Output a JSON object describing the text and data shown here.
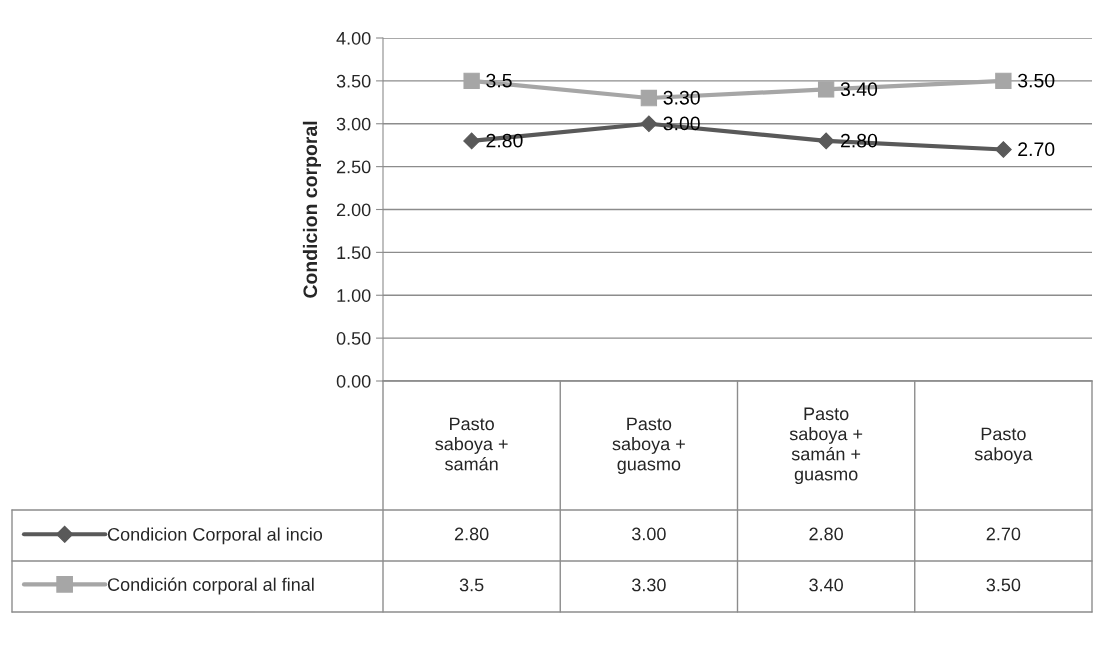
{
  "chart_data": {
    "type": "line",
    "ylabel": "Condicion corporal",
    "categories": [
      "Pasto\nsaboya +\nsamán",
      "Pasto\nsaboya +\nguasmo",
      "Pasto\nsaboya +\nsamán +\nguasmo",
      "Pasto\nsaboya"
    ],
    "series": [
      {
        "name": "Condicion Corporal al incio",
        "color": "#595959",
        "marker": "diamond",
        "values": [
          2.8,
          3.0,
          2.8,
          2.7
        ],
        "value_labels": [
          "2.80",
          "3.00",
          "2.80",
          "2.70"
        ]
      },
      {
        "name": "Condición corporal al final",
        "color": "#a6a6a6",
        "marker": "square",
        "values": [
          3.5,
          3.3,
          3.4,
          3.5
        ],
        "value_labels": [
          "3.5",
          "3.30",
          "3.40",
          "3.50"
        ]
      }
    ],
    "ylim": [
      0,
      4
    ],
    "yticks": [
      {
        "value": 0,
        "label": "0.00"
      },
      {
        "value": 0.5,
        "label": "0.50"
      },
      {
        "value": 1,
        "label": "1.00"
      },
      {
        "value": 1.5,
        "label": "1.50"
      },
      {
        "value": 2,
        "label": "2.00"
      },
      {
        "value": 2.5,
        "label": "2.50"
      },
      {
        "value": 3,
        "label": "3.00"
      },
      {
        "value": 3.5,
        "label": "3.50"
      },
      {
        "value": 4,
        "label": "4.00"
      }
    ],
    "grid": "y",
    "legend": "bottom",
    "line_style": "solid"
  }
}
